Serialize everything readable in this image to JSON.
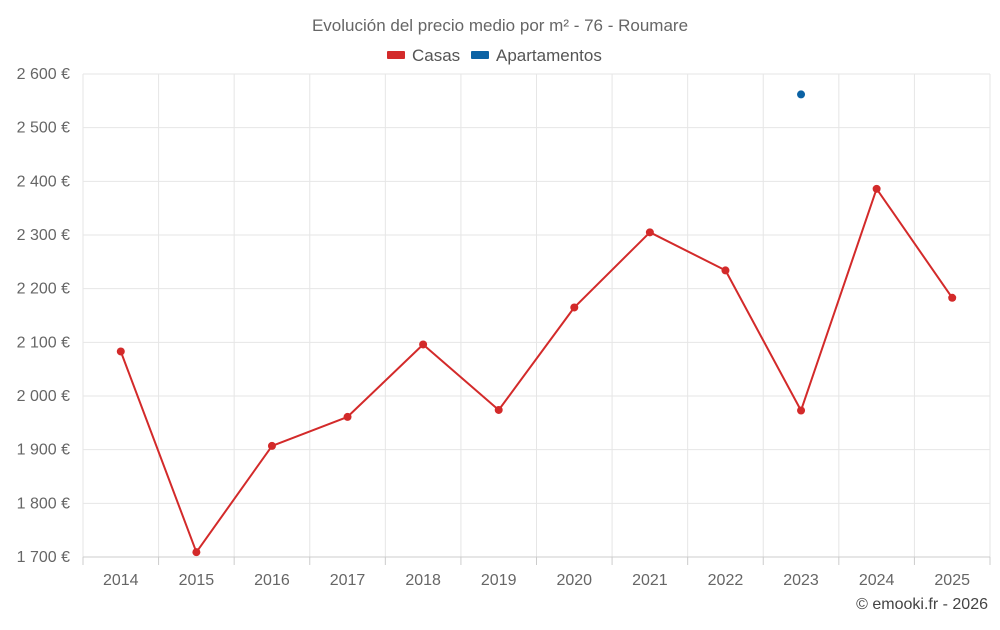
{
  "chart_data": {
    "type": "line",
    "title": "Evolución del precio medio por m² - 76 - Roumare",
    "categories": [
      "2014",
      "2015",
      "2016",
      "2017",
      "2018",
      "2019",
      "2020",
      "2021",
      "2022",
      "2023",
      "2024",
      "2025"
    ],
    "series": [
      {
        "name": "Casas",
        "color": "#d32a2a",
        "values": [
          2083,
          1709,
          1907,
          1961,
          2096,
          1974,
          2165,
          2305,
          2234,
          1973,
          2386,
          2183
        ]
      },
      {
        "name": "Apartamentos",
        "color": "#0b62a4",
        "values": [
          null,
          null,
          null,
          null,
          null,
          null,
          null,
          null,
          null,
          2562,
          null,
          null
        ]
      }
    ],
    "ylim": [
      1700,
      2600
    ],
    "yticks": [
      1700,
      1800,
      1900,
      2000,
      2100,
      2200,
      2300,
      2400,
      2500,
      2600
    ],
    "ytick_labels": [
      "1 700 €",
      "1 800 €",
      "1 900 €",
      "2 000 €",
      "2 100 €",
      "2 200 €",
      "2 300 €",
      "2 400 €",
      "2 500 €",
      "2 600 €"
    ],
    "grid": true,
    "legend_position": "top-center",
    "xlabel": "",
    "ylabel": ""
  },
  "credit": "© emooki.fr - 2026"
}
